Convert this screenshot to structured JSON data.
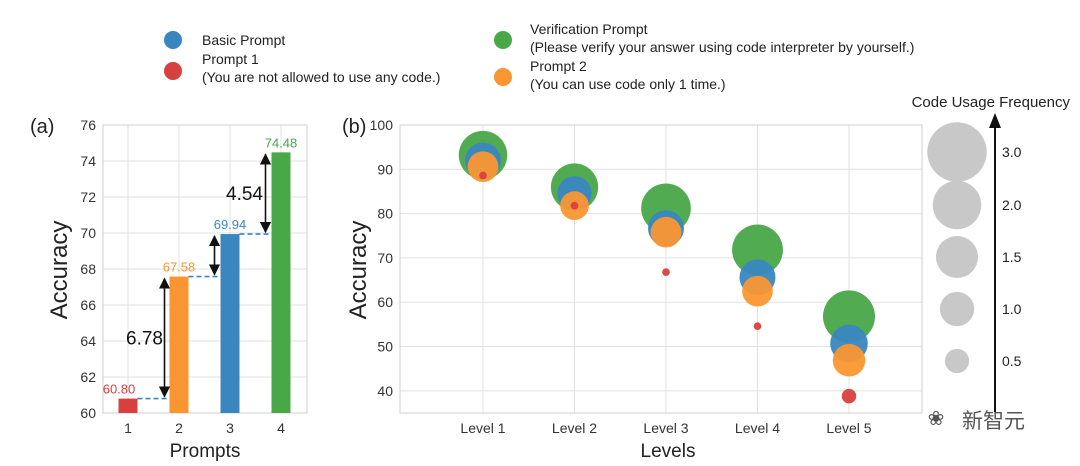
{
  "legend": {
    "items": [
      {
        "label": "Basic Prompt",
        "note": "",
        "color": "#3a87c0"
      },
      {
        "label": "Prompt 1",
        "note": "(You are not allowed to use any code.)",
        "color": "#d8403f"
      },
      {
        "label": "Verification Prompt",
        "note": "(Please verify your answer using code interpreter by yourself.)",
        "color": "#48a848"
      },
      {
        "label": "Prompt 2",
        "note": "(You can use code only 1 time.)",
        "color": "#fa9632"
      }
    ]
  },
  "watermark": "新智元",
  "chart_data": [
    {
      "type": "bar",
      "panel_label": "(a)",
      "xlabel": "Prompts",
      "ylabel": "Accuracy",
      "ylim": [
        60,
        76
      ],
      "yticks": [
        "60",
        "62",
        "64",
        "66",
        "68",
        "70",
        "72",
        "74",
        "76"
      ],
      "categories": [
        "1",
        "2",
        "3",
        "4"
      ],
      "values": [
        60.8,
        67.58,
        69.94,
        74.48
      ],
      "value_labels": [
        "60.80",
        "67.58",
        "69.94",
        "74.48"
      ],
      "colors": [
        "#d8403f",
        "#fa9632",
        "#3a87c0",
        "#48a848"
      ],
      "annotations": [
        {
          "text": "6.78",
          "from": 60.8,
          "to": 67.58
        },
        {
          "text": "4.54",
          "from": 69.94,
          "to": 74.48
        }
      ],
      "grid": true
    },
    {
      "type": "scatter",
      "panel_label": "(b)",
      "xlabel": "Levels",
      "ylabel": "Accuracy",
      "ylim": [
        35,
        100
      ],
      "yticks": [
        "40",
        "50",
        "60",
        "70",
        "80",
        "90",
        "100"
      ],
      "categories": [
        "Level 1",
        "Level 2",
        "Level 3",
        "Level 4",
        "Level 5"
      ],
      "series": [
        {
          "name": "Verification Prompt",
          "color": "#48a848",
          "values": [
            93.2,
            86.0,
            81.2,
            71.8,
            56.8
          ],
          "code_usage": [
            2.0,
            1.9,
            2.1,
            2.2,
            2.3
          ]
        },
        {
          "name": "Basic Prompt",
          "color": "#3a87c0",
          "values": [
            92.0,
            84.6,
            76.7,
            65.6,
            50.7
          ],
          "code_usage": [
            1.1,
            1.0,
            1.1,
            1.1,
            1.2
          ]
        },
        {
          "name": "Prompt 2",
          "color": "#fa9632",
          "values": [
            90.6,
            81.8,
            75.8,
            62.5,
            46.9
          ],
          "code_usage": [
            0.8,
            0.7,
            0.8,
            0.8,
            0.9
          ]
        },
        {
          "name": "Prompt 1",
          "color": "#d8403f",
          "values": [
            88.6,
            81.8,
            66.8,
            54.6,
            38.8
          ],
          "code_usage": [
            0.05,
            0.05,
            0.05,
            0.05,
            0.18
          ]
        }
      ],
      "size_legend": {
        "title": "Code Usage Frequency",
        "color": "#c8c8c8",
        "entries": [
          {
            "label": "3.0",
            "value": 3.0
          },
          {
            "label": "2.0",
            "value": 2.0
          },
          {
            "label": "1.5",
            "value": 1.5
          },
          {
            "label": "1.0",
            "value": 1.0
          },
          {
            "label": "0.5",
            "value": 0.5
          }
        ]
      },
      "grid": true
    }
  ]
}
